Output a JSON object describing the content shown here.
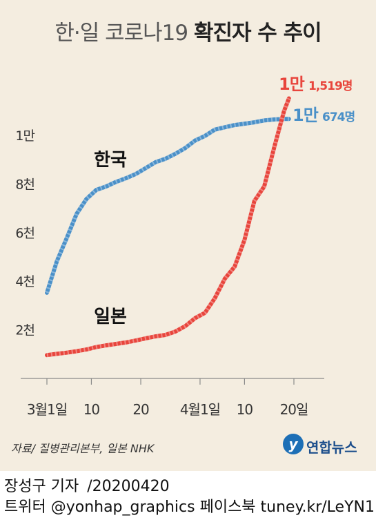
{
  "title": {
    "main": "한·일 코로나19 ",
    "bold": "확진자 수 추이"
  },
  "chart_data": {
    "type": "line",
    "title": "한·일 코로나19 확진자 수 추이",
    "xlabel": "",
    "ylabel": "",
    "xlim": [
      0,
      50
    ],
    "ylim": [
      0,
      11500
    ],
    "y_ticks": [
      {
        "value": 2000,
        "label": "2천"
      },
      {
        "value": 4000,
        "label": "4천"
      },
      {
        "value": 6000,
        "label": "6천"
      },
      {
        "value": 8000,
        "label": "8천"
      },
      {
        "value": 10000,
        "label": "1만"
      }
    ],
    "x_ticks": [
      {
        "value": 0,
        "label": "3월1일"
      },
      {
        "value": 9,
        "label": "10"
      },
      {
        "value": 19,
        "label": "20"
      },
      {
        "value": 31,
        "label": "4월1일"
      },
      {
        "value": 40,
        "label": "10"
      },
      {
        "value": 50,
        "label": "20일"
      }
    ],
    "series": [
      {
        "name": "한국",
        "color": "#4a90c8",
        "x": [
          0,
          2,
          4,
          6,
          8,
          10,
          12,
          14,
          16,
          18,
          20,
          22,
          24,
          26,
          28,
          30,
          32,
          34,
          36,
          38,
          40,
          42,
          44,
          46,
          48,
          49
        ],
        "y": [
          3526,
          4812,
          5766,
          6767,
          7382,
          7755,
          7897,
          8086,
          8236,
          8413,
          8652,
          8897,
          9037,
          9241,
          9478,
          9786,
          9976,
          10237,
          10331,
          10423,
          10480,
          10537,
          10613,
          10653,
          10674,
          10674
        ],
        "label_text": "한국",
        "end_label": {
          "big": "1만",
          "small": "674명"
        }
      },
      {
        "name": "일본",
        "color": "#e8453c",
        "x": [
          0,
          2,
          4,
          6,
          8,
          10,
          12,
          14,
          16,
          18,
          20,
          22,
          24,
          26,
          28,
          30,
          32,
          34,
          36,
          38,
          40,
          42,
          44,
          46,
          48,
          49
        ],
        "y": [
          960,
          1010,
          1060,
          1120,
          1190,
          1290,
          1360,
          1420,
          1480,
          1560,
          1650,
          1730,
          1790,
          1930,
          2150,
          2480,
          2700,
          3300,
          4100,
          4600,
          5700,
          7300,
          7900,
          9500,
          11000,
          11519
        ],
        "label_text": "일본",
        "end_label": {
          "big": "1만",
          "small": "1,519명"
        }
      }
    ]
  },
  "source": "자료/ 질병관리본부, 일본 NHK",
  "logo": {
    "mark": "y",
    "text": "연합뉴스"
  },
  "credit": {
    "author": "장성구 기자",
    "date": "/20200420",
    "line2": "트위터 @yonhap_graphics  페이스북 tuney.kr/LeYN1"
  }
}
